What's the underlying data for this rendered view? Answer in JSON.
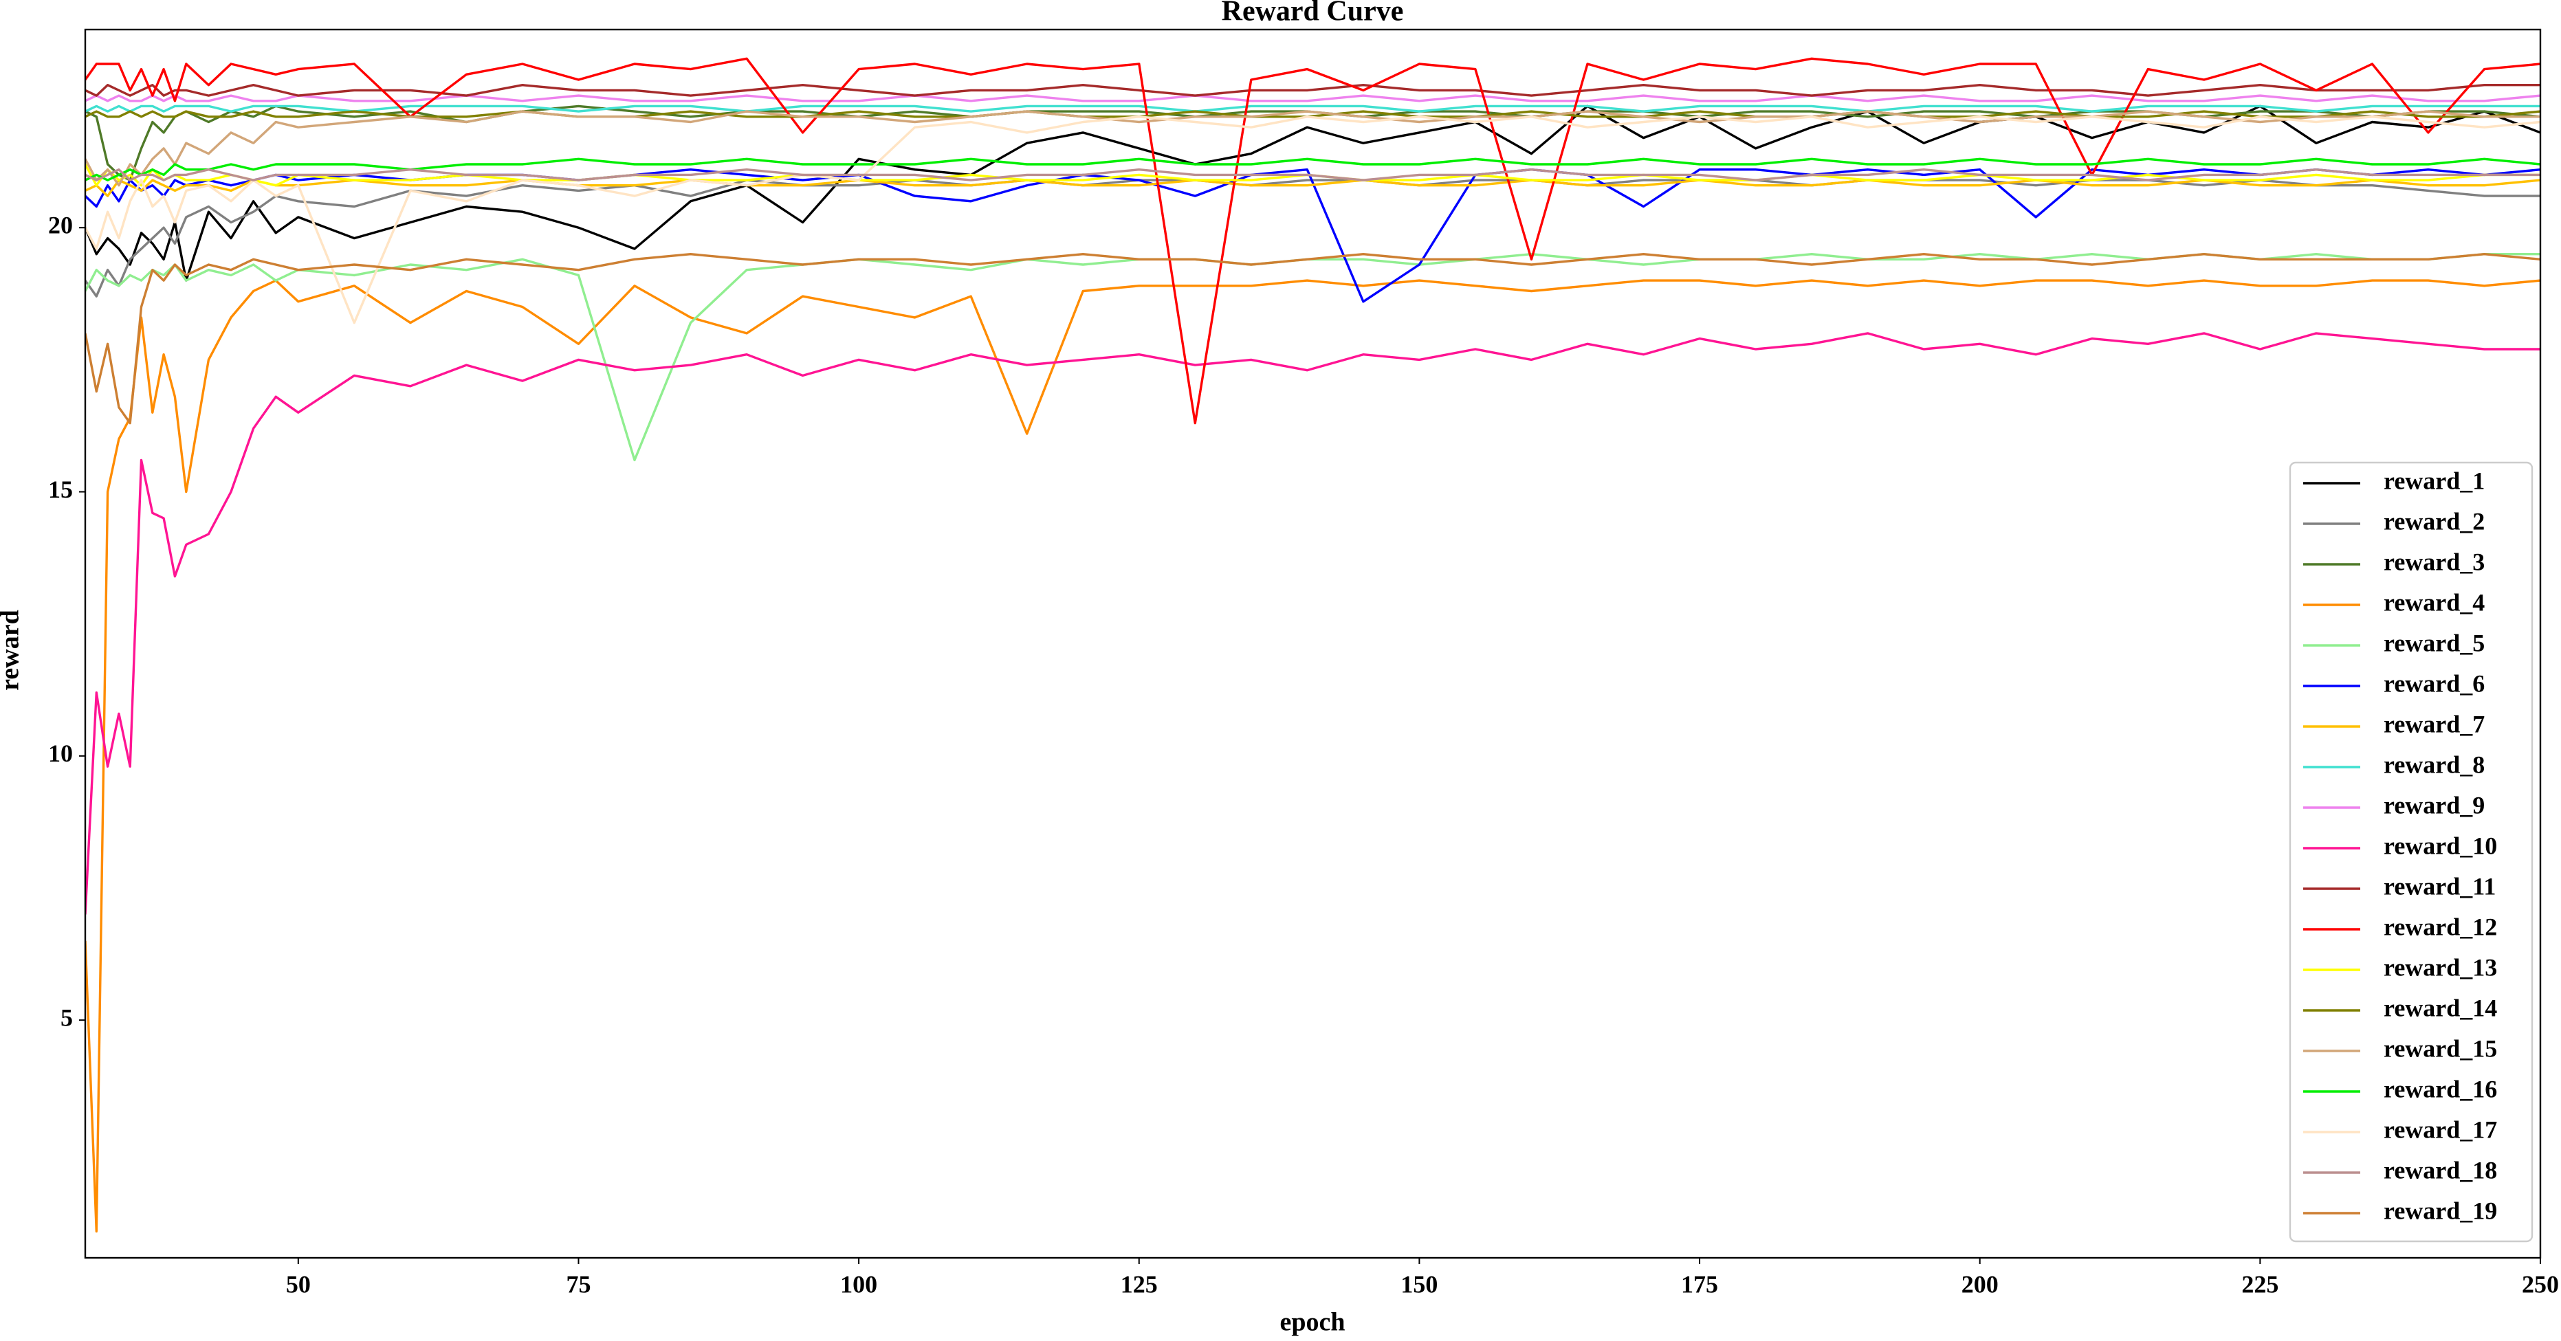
{
  "chart_data": {
    "type": "line",
    "title": "Reward Curve",
    "xlabel": "epoch",
    "ylabel": "reward",
    "x": [
      31,
      32,
      33,
      34,
      35,
      36,
      37,
      38,
      39,
      40,
      42,
      44,
      46,
      48,
      50,
      55,
      60,
      65,
      70,
      75,
      80,
      85,
      90,
      95,
      100,
      105,
      110,
      115,
      120,
      125,
      130,
      135,
      140,
      145,
      150,
      155,
      160,
      165,
      170,
      175,
      180,
      185,
      190,
      195,
      200,
      205,
      210,
      215,
      220,
      225,
      230,
      235,
      240,
      245,
      250
    ],
    "xlim": [
      31,
      250
    ],
    "ylim": [
      0.5,
      23.75
    ],
    "xticks": [
      50,
      75,
      100,
      125,
      150,
      175,
      200,
      225,
      250
    ],
    "yticks": [
      5,
      10,
      15,
      20
    ],
    "legend": "lower right",
    "series": [
      {
        "name": "reward_1",
        "color": "#000000",
        "values": [
          20.0,
          19.5,
          19.8,
          19.6,
          19.3,
          19.9,
          19.7,
          19.4,
          20.1,
          19.0,
          20.3,
          19.8,
          20.5,
          19.9,
          20.2,
          19.8,
          20.1,
          20.4,
          20.3,
          20.0,
          19.6,
          20.5,
          20.8,
          20.1,
          21.3,
          21.1,
          21.0,
          21.6,
          21.8,
          21.5,
          21.2,
          21.4,
          21.9,
          21.6,
          21.8,
          22.0,
          21.4,
          22.3,
          21.7,
          22.1,
          21.5,
          21.9,
          22.2,
          21.6,
          22.0,
          22.1,
          21.7,
          22.0,
          21.8,
          22.3,
          21.6,
          22.0,
          21.9,
          22.2,
          21.8
        ]
      },
      {
        "name": "reward_2",
        "color": "#808080",
        "values": [
          19.0,
          18.7,
          19.2,
          18.9,
          19.4,
          19.6,
          19.8,
          20.0,
          19.7,
          20.2,
          20.4,
          20.1,
          20.3,
          20.6,
          20.5,
          20.4,
          20.7,
          20.6,
          20.8,
          20.7,
          20.8,
          20.6,
          20.9,
          20.8,
          20.8,
          20.9,
          20.8,
          20.9,
          20.8,
          20.9,
          20.9,
          20.8,
          20.9,
          20.9,
          20.8,
          20.9,
          20.9,
          20.8,
          20.9,
          20.9,
          20.9,
          20.8,
          20.9,
          20.9,
          20.9,
          20.8,
          20.9,
          20.9,
          20.8,
          20.9,
          20.8,
          20.8,
          20.7,
          20.6,
          20.6
        ]
      },
      {
        "name": "reward_3",
        "color": "#4f7a28",
        "values": [
          22.2,
          22.1,
          21.2,
          21.0,
          20.9,
          21.5,
          22.0,
          21.8,
          22.1,
          22.2,
          22.0,
          22.2,
          22.1,
          22.3,
          22.2,
          22.1,
          22.2,
          22.0,
          22.2,
          22.3,
          22.2,
          22.1,
          22.2,
          22.2,
          22.1,
          22.2,
          22.1,
          22.2,
          22.2,
          22.2,
          22.1,
          22.2,
          22.2,
          22.1,
          22.2,
          22.2,
          22.1,
          22.2,
          22.2,
          22.1,
          22.2,
          22.2,
          22.1,
          22.2,
          22.2,
          22.1,
          22.2,
          22.2,
          22.1,
          22.2,
          22.2,
          22.1,
          22.2,
          22.2,
          22.1
        ]
      },
      {
        "name": "reward_4",
        "color": "#ff8c00",
        "values": [
          6.5,
          1.0,
          15.0,
          16.0,
          16.4,
          18.3,
          16.5,
          17.6,
          16.8,
          15.0,
          17.5,
          18.3,
          18.8,
          19.0,
          18.6,
          18.9,
          18.2,
          18.8,
          18.5,
          17.8,
          18.9,
          18.3,
          18.0,
          18.7,
          18.5,
          18.3,
          18.7,
          16.1,
          18.8,
          18.9,
          18.9,
          18.9,
          19.0,
          18.9,
          19.0,
          18.9,
          18.8,
          18.9,
          19.0,
          19.0,
          18.9,
          19.0,
          18.9,
          19.0,
          18.9,
          19.0,
          19.0,
          18.9,
          19.0,
          18.9,
          18.9,
          19.0,
          19.0,
          18.9,
          19.0
        ]
      },
      {
        "name": "reward_5",
        "color": "#90ee90",
        "values": [
          18.8,
          19.2,
          19.0,
          18.9,
          19.1,
          19.0,
          19.2,
          19.1,
          19.3,
          19.0,
          19.2,
          19.1,
          19.3,
          19.0,
          19.2,
          19.1,
          19.3,
          19.2,
          19.4,
          19.1,
          15.6,
          18.2,
          19.2,
          19.3,
          19.4,
          19.3,
          19.2,
          19.4,
          19.3,
          19.4,
          19.4,
          19.3,
          19.4,
          19.4,
          19.3,
          19.4,
          19.5,
          19.4,
          19.3,
          19.4,
          19.4,
          19.5,
          19.4,
          19.4,
          19.5,
          19.4,
          19.5,
          19.4,
          19.5,
          19.4,
          19.5,
          19.4,
          19.4,
          19.5,
          19.5
        ]
      },
      {
        "name": "reward_6",
        "color": "#0000ff",
        "values": [
          20.6,
          20.4,
          20.8,
          20.5,
          20.9,
          20.7,
          20.8,
          20.6,
          20.9,
          20.8,
          20.9,
          20.8,
          20.9,
          21.0,
          20.9,
          21.0,
          20.9,
          21.0,
          21.0,
          20.9,
          21.0,
          21.1,
          21.0,
          20.9,
          21.0,
          20.6,
          20.5,
          20.8,
          21.0,
          20.9,
          20.6,
          21.0,
          21.1,
          18.6,
          19.3,
          21.0,
          21.1,
          21.0,
          20.4,
          21.1,
          21.1,
          21.0,
          21.1,
          21.0,
          21.1,
          20.2,
          21.1,
          21.0,
          21.1,
          21.0,
          21.1,
          21.0,
          21.1,
          21.0,
          21.1
        ]
      },
      {
        "name": "reward_7",
        "color": "#ffc000",
        "values": [
          20.7,
          20.8,
          20.6,
          20.9,
          20.8,
          20.7,
          20.9,
          20.8,
          20.7,
          20.8,
          20.8,
          20.7,
          20.9,
          20.8,
          20.8,
          20.9,
          20.8,
          20.8,
          20.9,
          20.8,
          20.8,
          20.9,
          20.8,
          20.8,
          20.9,
          20.8,
          20.8,
          20.9,
          20.8,
          20.8,
          20.9,
          20.8,
          20.8,
          20.9,
          20.8,
          20.8,
          20.9,
          20.8,
          20.8,
          20.9,
          20.8,
          20.8,
          20.9,
          20.8,
          20.8,
          20.9,
          20.8,
          20.8,
          20.9,
          20.8,
          20.8,
          20.9,
          20.8,
          20.8,
          20.9
        ]
      },
      {
        "name": "reward_8",
        "color": "#40e0d0",
        "values": [
          22.2,
          22.3,
          22.2,
          22.3,
          22.2,
          22.3,
          22.3,
          22.2,
          22.3,
          22.3,
          22.3,
          22.2,
          22.3,
          22.3,
          22.3,
          22.2,
          22.3,
          22.3,
          22.3,
          22.2,
          22.3,
          22.3,
          22.2,
          22.3,
          22.3,
          22.3,
          22.2,
          22.3,
          22.3,
          22.3,
          22.2,
          22.3,
          22.3,
          22.3,
          22.2,
          22.3,
          22.3,
          22.3,
          22.2,
          22.3,
          22.3,
          22.3,
          22.2,
          22.3,
          22.3,
          22.3,
          22.2,
          22.3,
          22.3,
          22.3,
          22.2,
          22.3,
          22.3,
          22.3,
          22.3
        ]
      },
      {
        "name": "reward_9",
        "color": "#ee82ee",
        "values": [
          22.4,
          22.5,
          22.4,
          22.5,
          22.4,
          22.4,
          22.5,
          22.4,
          22.5,
          22.4,
          22.4,
          22.5,
          22.4,
          22.4,
          22.5,
          22.4,
          22.4,
          22.5,
          22.4,
          22.5,
          22.4,
          22.4,
          22.5,
          22.4,
          22.4,
          22.5,
          22.4,
          22.5,
          22.4,
          22.4,
          22.5,
          22.4,
          22.4,
          22.5,
          22.4,
          22.5,
          22.4,
          22.4,
          22.5,
          22.4,
          22.4,
          22.5,
          22.4,
          22.5,
          22.4,
          22.4,
          22.5,
          22.4,
          22.4,
          22.5,
          22.4,
          22.5,
          22.4,
          22.4,
          22.5
        ]
      },
      {
        "name": "reward_10",
        "color": "#ff1493",
        "values": [
          7.0,
          11.2,
          9.8,
          10.8,
          9.8,
          15.6,
          14.6,
          14.5,
          13.4,
          14.0,
          14.2,
          15.0,
          16.2,
          16.8,
          16.5,
          17.2,
          17.0,
          17.4,
          17.1,
          17.5,
          17.3,
          17.4,
          17.6,
          17.2,
          17.5,
          17.3,
          17.6,
          17.4,
          17.5,
          17.6,
          17.4,
          17.5,
          17.3,
          17.6,
          17.5,
          17.7,
          17.5,
          17.8,
          17.6,
          17.9,
          17.7,
          17.8,
          18.0,
          17.7,
          17.8,
          17.6,
          17.9,
          17.8,
          18.0,
          17.7,
          18.0,
          17.9,
          17.8,
          17.7,
          17.7
        ]
      },
      {
        "name": "reward_11",
        "color": "#a52a2a",
        "values": [
          22.6,
          22.5,
          22.7,
          22.6,
          22.5,
          22.6,
          22.7,
          22.5,
          22.6,
          22.6,
          22.5,
          22.6,
          22.7,
          22.6,
          22.5,
          22.6,
          22.6,
          22.5,
          22.7,
          22.6,
          22.6,
          22.5,
          22.6,
          22.7,
          22.6,
          22.5,
          22.6,
          22.6,
          22.7,
          22.6,
          22.5,
          22.6,
          22.6,
          22.7,
          22.6,
          22.6,
          22.5,
          22.6,
          22.7,
          22.6,
          22.6,
          22.5,
          22.6,
          22.6,
          22.7,
          22.6,
          22.6,
          22.5,
          22.6,
          22.7,
          22.6,
          22.6,
          22.6,
          22.7,
          22.7
        ]
      },
      {
        "name": "reward_12",
        "color": "#ff0000",
        "values": [
          22.8,
          23.1,
          23.1,
          23.1,
          22.6,
          23.0,
          22.5,
          23.0,
          22.4,
          23.1,
          22.7,
          23.1,
          23.0,
          22.9,
          23.0,
          23.1,
          22.1,
          22.9,
          23.1,
          22.8,
          23.1,
          23.0,
          23.2,
          21.8,
          23.0,
          23.1,
          22.9,
          23.1,
          23.0,
          23.1,
          16.3,
          22.8,
          23.0,
          22.6,
          23.1,
          23.0,
          19.4,
          23.1,
          22.8,
          23.1,
          23.0,
          23.2,
          23.1,
          22.9,
          23.1,
          23.1,
          21.0,
          23.0,
          22.8,
          23.1,
          22.6,
          23.1,
          21.8,
          23.0,
          23.1
        ]
      },
      {
        "name": "reward_13",
        "color": "#ffff00",
        "values": [
          21.2,
          20.8,
          21.1,
          20.9,
          21.0,
          20.8,
          21.1,
          20.9,
          21.0,
          20.9,
          20.9,
          21.0,
          20.9,
          20.8,
          21.0,
          20.9,
          20.9,
          21.0,
          20.9,
          20.9,
          21.0,
          20.9,
          20.9,
          21.0,
          20.9,
          20.9,
          21.0,
          20.9,
          20.9,
          21.0,
          20.9,
          20.9,
          21.0,
          20.9,
          20.9,
          21.0,
          20.9,
          20.9,
          21.0,
          20.9,
          20.9,
          21.0,
          20.9,
          20.9,
          21.0,
          20.9,
          20.9,
          21.0,
          20.9,
          20.9,
          21.0,
          20.9,
          20.9,
          21.0,
          21.0
        ]
      },
      {
        "name": "reward_14",
        "color": "#808000",
        "values": [
          22.1,
          22.2,
          22.1,
          22.1,
          22.2,
          22.1,
          22.2,
          22.1,
          22.1,
          22.2,
          22.1,
          22.1,
          22.2,
          22.1,
          22.1,
          22.2,
          22.1,
          22.1,
          22.2,
          22.1,
          22.1,
          22.2,
          22.1,
          22.1,
          22.2,
          22.1,
          22.1,
          22.2,
          22.1,
          22.1,
          22.2,
          22.1,
          22.1,
          22.2,
          22.1,
          22.1,
          22.2,
          22.1,
          22.1,
          22.2,
          22.1,
          22.1,
          22.2,
          22.1,
          22.1,
          22.2,
          22.1,
          22.1,
          22.2,
          22.1,
          22.1,
          22.2,
          22.1,
          22.1,
          22.2
        ]
      },
      {
        "name": "reward_15",
        "color": "#d2a679",
        "values": [
          21.3,
          20.9,
          21.1,
          20.8,
          21.2,
          21.0,
          21.3,
          21.5,
          21.2,
          21.6,
          21.4,
          21.8,
          21.6,
          22.0,
          21.9,
          22.0,
          22.1,
          22.0,
          22.2,
          22.1,
          22.1,
          22.0,
          22.2,
          22.1,
          22.1,
          22.0,
          22.1,
          22.2,
          22.1,
          22.0,
          22.1,
          22.1,
          22.2,
          22.1,
          22.0,
          22.1,
          22.1,
          22.2,
          22.1,
          22.0,
          22.1,
          22.1,
          22.2,
          22.1,
          22.0,
          22.1,
          22.1,
          22.2,
          22.1,
          22.0,
          22.1,
          22.1,
          22.2,
          22.1,
          22.1
        ]
      },
      {
        "name": "reward_16",
        "color": "#00ee00",
        "values": [
          20.9,
          21.0,
          20.9,
          21.0,
          21.1,
          21.0,
          21.1,
          21.0,
          21.2,
          21.1,
          21.1,
          21.2,
          21.1,
          21.2,
          21.2,
          21.2,
          21.1,
          21.2,
          21.2,
          21.3,
          21.2,
          21.2,
          21.3,
          21.2,
          21.2,
          21.2,
          21.3,
          21.2,
          21.2,
          21.3,
          21.2,
          21.2,
          21.3,
          21.2,
          21.2,
          21.3,
          21.2,
          21.2,
          21.3,
          21.2,
          21.2,
          21.3,
          21.2,
          21.2,
          21.3,
          21.2,
          21.2,
          21.3,
          21.2,
          21.2,
          21.3,
          21.2,
          21.2,
          21.3,
          21.2
        ]
      },
      {
        "name": "reward_17",
        "color": "#ffe4c4",
        "values": [
          20.0,
          19.6,
          20.3,
          19.8,
          20.5,
          20.9,
          20.4,
          20.6,
          20.1,
          20.7,
          20.8,
          20.5,
          20.9,
          20.6,
          20.8,
          18.2,
          20.7,
          20.5,
          20.9,
          20.8,
          20.6,
          20.9,
          20.8,
          21.0,
          20.9,
          21.9,
          22.0,
          21.8,
          22.0,
          22.1,
          22.0,
          21.9,
          22.1,
          22.0,
          22.1,
          22.0,
          22.1,
          21.9,
          22.0,
          22.1,
          22.0,
          22.1,
          21.9,
          22.0,
          22.1,
          22.0,
          22.1,
          22.0,
          21.9,
          22.1,
          22.0,
          22.1,
          22.0,
          21.9,
          22.0
        ]
      },
      {
        "name": "reward_18",
        "color": "#bc8f8f",
        "values": [
          21.0,
          20.9,
          21.0,
          21.1,
          20.9,
          21.0,
          21.0,
          20.9,
          21.0,
          21.0,
          21.1,
          21.0,
          20.9,
          21.0,
          21.0,
          21.0,
          21.1,
          21.0,
          21.0,
          20.9,
          21.0,
          21.0,
          21.1,
          21.0,
          21.0,
          21.0,
          20.9,
          21.0,
          21.0,
          21.1,
          21.0,
          21.0,
          21.0,
          20.9,
          21.0,
          21.0,
          21.1,
          21.0,
          21.0,
          21.0,
          20.9,
          21.0,
          21.0,
          21.1,
          21.0,
          21.0,
          21.0,
          20.9,
          21.0,
          21.0,
          21.1,
          21.0,
          21.0,
          21.0,
          21.0
        ]
      },
      {
        "name": "reward_19",
        "color": "#cd7f32",
        "values": [
          18.0,
          16.9,
          17.8,
          16.6,
          16.3,
          18.5,
          19.2,
          19.0,
          19.3,
          19.1,
          19.3,
          19.2,
          19.4,
          19.3,
          19.2,
          19.3,
          19.2,
          19.4,
          19.3,
          19.2,
          19.4,
          19.5,
          19.4,
          19.3,
          19.4,
          19.4,
          19.3,
          19.4,
          19.5,
          19.4,
          19.4,
          19.3,
          19.4,
          19.5,
          19.4,
          19.4,
          19.3,
          19.4,
          19.5,
          19.4,
          19.4,
          19.3,
          19.4,
          19.5,
          19.4,
          19.4,
          19.3,
          19.4,
          19.5,
          19.4,
          19.4,
          19.4,
          19.4,
          19.5,
          19.4
        ]
      }
    ]
  }
}
